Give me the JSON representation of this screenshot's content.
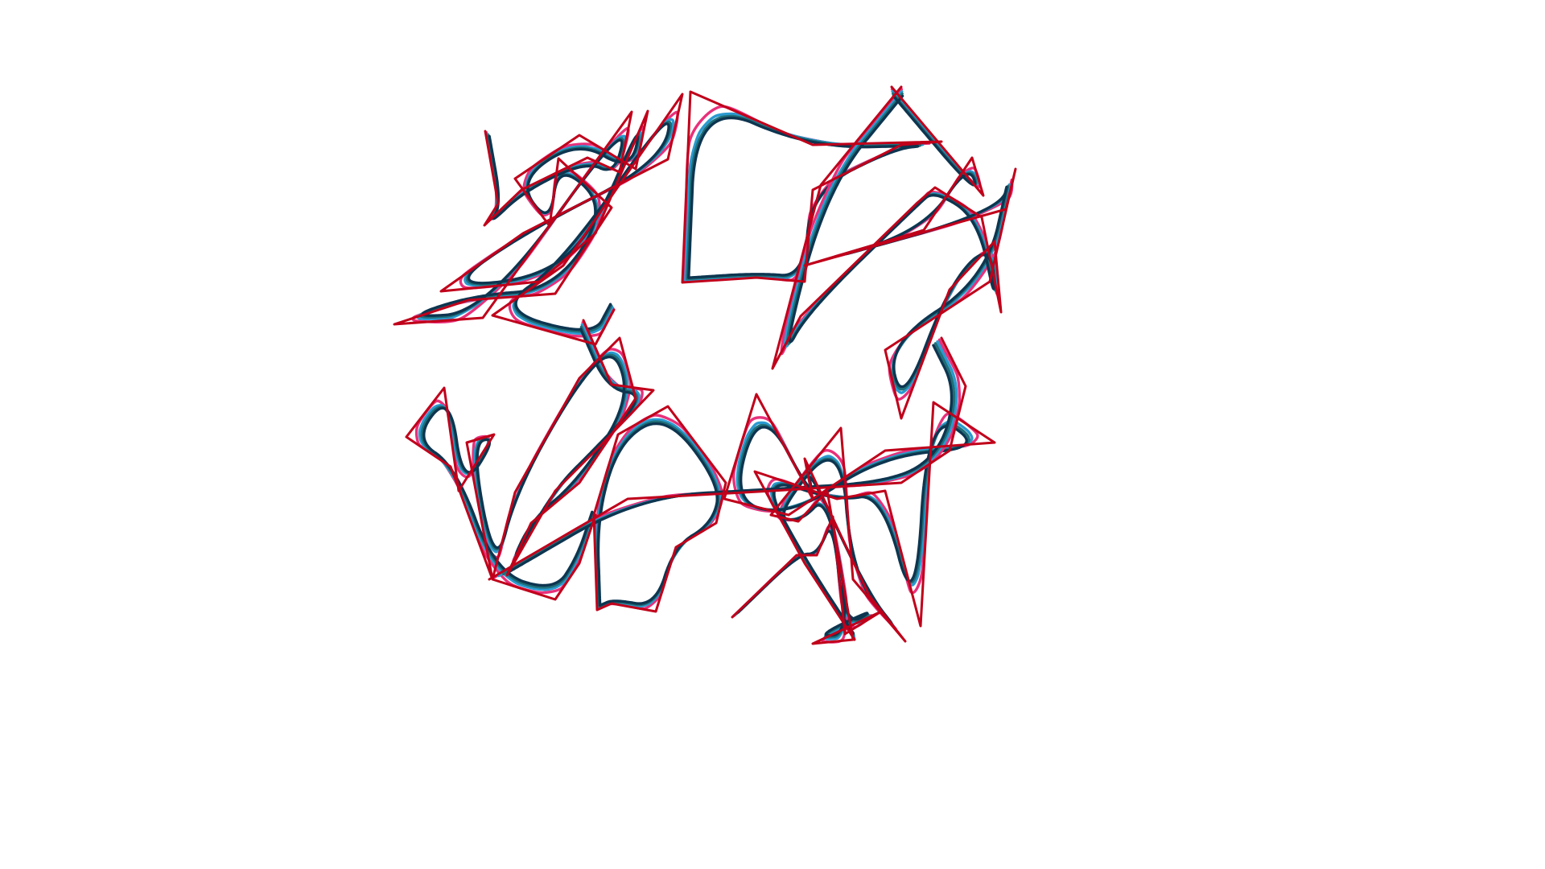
{
  "artwork": {
    "colors": {
      "background": "#ffffff",
      "control_polygon": "#c0001a",
      "curve_pink": "#e8307a",
      "curve_blue": "#2a9ad0",
      "curve_teal": "#1f6f78",
      "curve_navy": "#0d3550"
    }
  }
}
